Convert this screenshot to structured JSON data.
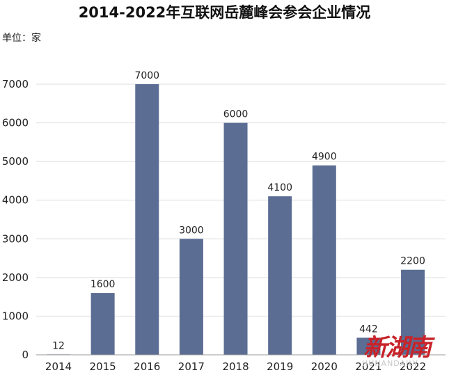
{
  "chart_data": {
    "type": "bar",
    "title": "2014-2022年互联网岳麓峰会参会企业情况",
    "unit_label": "单位：家",
    "categories": [
      "2014",
      "2015",
      "2016",
      "2017",
      "2018",
      "2019",
      "2020",
      "2021",
      "2022"
    ],
    "values": [
      12,
      1600,
      7000,
      3000,
      6000,
      4100,
      4900,
      442,
      2200
    ],
    "data_labels": [
      "12",
      "1600",
      "7000",
      "3000",
      "6000",
      "4100",
      "4900",
      "442",
      "2200"
    ],
    "yticks": [
      "0",
      "1000",
      "2000",
      "3000",
      "4000",
      "5000",
      "6000",
      "7000"
    ],
    "ylim": [
      0,
      7000
    ],
    "grid": true,
    "legend": "none",
    "bar_color": "#5b6d93"
  },
  "watermark": {
    "logo_text": "新湖南",
    "sub_text": "HUNANDAILY"
  }
}
